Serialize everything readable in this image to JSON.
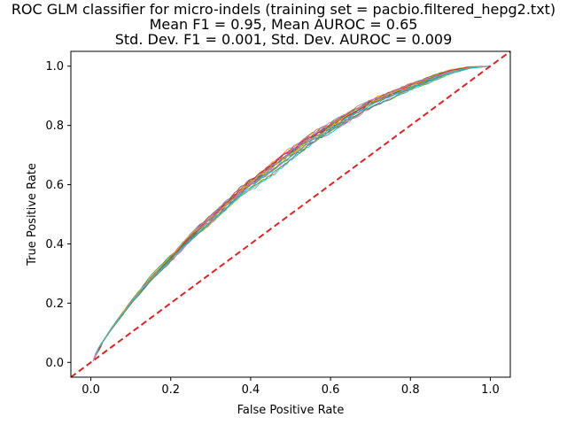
{
  "chart_data": {
    "type": "line",
    "title_lines": [
      "ROC GLM classifier for micro-indels (training set = pacbio.filtered_hepg2.txt)",
      "Mean F1 = 0.95, Mean AUROC = 0.65",
      "Std. Dev. F1 = 0.001, Std. Dev. AUROC = 0.009"
    ],
    "xlabel": "False Positive Rate",
    "ylabel": "True Positive Rate",
    "xlim": [
      -0.05,
      1.05
    ],
    "ylim": [
      -0.05,
      1.05
    ],
    "xticks": [
      "0.0",
      "0.2",
      "0.4",
      "0.6",
      "0.8",
      "1.0"
    ],
    "yticks": [
      "0.0",
      "0.2",
      "0.4",
      "0.6",
      "0.8",
      "1.0"
    ],
    "grid": false,
    "legend": "none",
    "mean_curve": {
      "x": [
        0,
        0.02,
        0.05,
        0.1,
        0.15,
        0.2,
        0.25,
        0.3,
        0.35,
        0.4,
        0.45,
        0.5,
        0.55,
        0.6,
        0.65,
        0.7,
        0.75,
        0.8,
        0.85,
        0.9,
        0.95,
        1.0
      ],
      "y": [
        0,
        0.05,
        0.11,
        0.2,
        0.28,
        0.35,
        0.42,
        0.48,
        0.54,
        0.6,
        0.65,
        0.7,
        0.75,
        0.79,
        0.83,
        0.87,
        0.9,
        0.93,
        0.955,
        0.98,
        0.995,
        1.0
      ]
    },
    "runs": 20,
    "series_colors": [
      "#1f77b4",
      "#ff7f0e",
      "#2ca02c",
      "#d62728",
      "#9467bd",
      "#8c564b",
      "#e377c2",
      "#7f7f7f",
      "#bcbd22",
      "#17becf"
    ],
    "baseline": {
      "x": [
        -0.05,
        1.05
      ],
      "y": [
        -0.05,
        1.05
      ],
      "color": "#d62728",
      "style": "dashed"
    }
  }
}
